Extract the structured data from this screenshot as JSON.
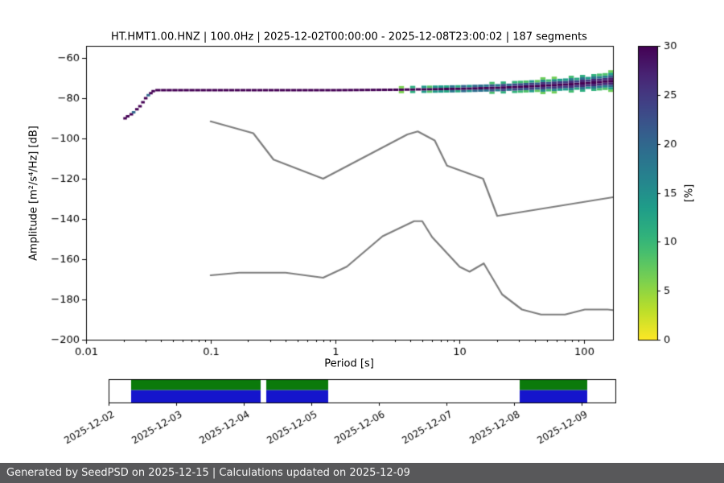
{
  "footer": {
    "text": "Generated by SeedPSD on 2025-12-15 | Calculations updated on 2025-12-09",
    "bg": "#58585a",
    "fg": "#f5f5f5"
  },
  "chart_data": {
    "type": "heatmap",
    "title": "HT.HMT1.00.HNZ | 100.0Hz | 2025-12-02T00:00:00 - 2025-12-08T23:00:02 | 187 segments",
    "title_parts": {
      "channel_id": "HT.HMT1.00.HNZ",
      "sampling_rate": "100.0Hz",
      "start": "2025-12-02T00:00:00",
      "end": "2025-12-08T23:00:02",
      "segments": "187 segments"
    },
    "xlabel": "Period [s]",
    "ylabel": "Amplitude [m²/s⁴/Hz] [dB]",
    "xscale": "log",
    "xlim": [
      0.01,
      170
    ],
    "ylim": [
      -200,
      -54
    ],
    "xticks": {
      "values": [
        0.01,
        0.1,
        1,
        10,
        100
      ],
      "labels": [
        "0.01",
        "0.1",
        "1",
        "10",
        "100"
      ]
    },
    "yticks": {
      "values": [
        -200,
        -180,
        -160,
        -140,
        -120,
        -100,
        -80,
        -60
      ],
      "labels": [
        "−200",
        "−180",
        "−160",
        "−140",
        "−120",
        "−100",
        "−80",
        "−60"
      ]
    },
    "colorbar": {
      "label": "[%]",
      "min": 0,
      "max": 30,
      "ticks": [
        0,
        5,
        10,
        15,
        20,
        25,
        30
      ],
      "colormap": "viridis reversed (30 = dark purple, 0 = yellow)"
    },
    "noise_models": {
      "name": "Peterson NHNM / NLNM",
      "color": "#7d7d7d",
      "nhnm": [
        [
          0.1,
          -91.5
        ],
        [
          0.22,
          -97.4
        ],
        [
          0.32,
          -110.5
        ],
        [
          0.8,
          -120.0
        ],
        [
          3.8,
          -98.0
        ],
        [
          4.6,
          -96.5
        ],
        [
          6.3,
          -101.0
        ],
        [
          7.9,
          -113.5
        ],
        [
          15.4,
          -120.0
        ],
        [
          20.0,
          -138.5
        ],
        [
          170.0,
          -129.2
        ]
      ],
      "nlnm": [
        [
          0.1,
          -168.0
        ],
        [
          0.17,
          -166.7
        ],
        [
          0.4,
          -166.7
        ],
        [
          0.8,
          -169.2
        ],
        [
          1.24,
          -163.7
        ],
        [
          2.4,
          -148.6
        ],
        [
          4.3,
          -141.1
        ],
        [
          5.0,
          -141.1
        ],
        [
          6.0,
          -149.0
        ],
        [
          10.0,
          -163.8
        ],
        [
          12.0,
          -166.2
        ],
        [
          15.6,
          -162.1
        ],
        [
          21.9,
          -177.5
        ],
        [
          31.6,
          -185.0
        ],
        [
          45.0,
          -187.5
        ],
        [
          70.0,
          -187.5
        ],
        [
          101.0,
          -185.0
        ],
        [
          154.0,
          -185.0
        ],
        [
          170.0,
          -185.3
        ]
      ]
    },
    "ppsd": {
      "onset": [
        [
          0.0205,
          -90.0
        ],
        [
          0.0215,
          -89.0
        ],
        [
          0.023,
          -88.0
        ],
        [
          0.024,
          -87.0
        ],
        [
          0.0255,
          -85.5
        ],
        [
          0.027,
          -84.0
        ],
        [
          0.0285,
          -82.0
        ],
        [
          0.03,
          -80.0
        ],
        [
          0.0315,
          -78.5
        ],
        [
          0.033,
          -77.5
        ],
        [
          0.0345,
          -76.5
        ]
      ],
      "mode": [
        [
          0.036,
          -76.0
        ],
        [
          0.1,
          -76.0
        ],
        [
          0.5,
          -76.0
        ],
        [
          1.0,
          -76.0
        ],
        [
          3.0,
          -75.8
        ],
        [
          10.0,
          -75.3
        ],
        [
          20.0,
          -74.8
        ],
        [
          40.0,
          -74.0
        ],
        [
          80.0,
          -73.0
        ],
        [
          120.0,
          -72.2
        ],
        [
          170.0,
          -71.4
        ]
      ],
      "spread_halfwidth_db": [
        [
          1.8,
          0.7
        ],
        [
          3,
          1.1
        ],
        [
          6,
          1.6
        ],
        [
          12,
          2.1
        ],
        [
          25,
          2.7
        ],
        [
          50,
          3.3
        ],
        [
          100,
          4.0
        ],
        [
          170,
          4.5
        ]
      ],
      "max_percent": 30
    }
  },
  "timeline": {
    "start": "2025-12-02T00:00:00",
    "end": "2025-12-09T12:00:00",
    "tick_labels": [
      "2025-12-02",
      "2025-12-03",
      "2025-12-04",
      "2025-12-05",
      "2025-12-06",
      "2025-12-07",
      "2025-12-08",
      "2025-12-09"
    ],
    "segments": [
      {
        "start": "2025-12-02T08:00:00",
        "end": "2025-12-04T06:00:00"
      },
      {
        "start": "2025-12-04T08:00:00",
        "end": "2025-12-05T06:00:00"
      },
      {
        "start": "2025-12-08T02:00:00",
        "end": "2025-12-09T02:00:00"
      }
    ],
    "colors": {
      "top": "#0b7a0b",
      "bottom": "#1515cc"
    }
  }
}
